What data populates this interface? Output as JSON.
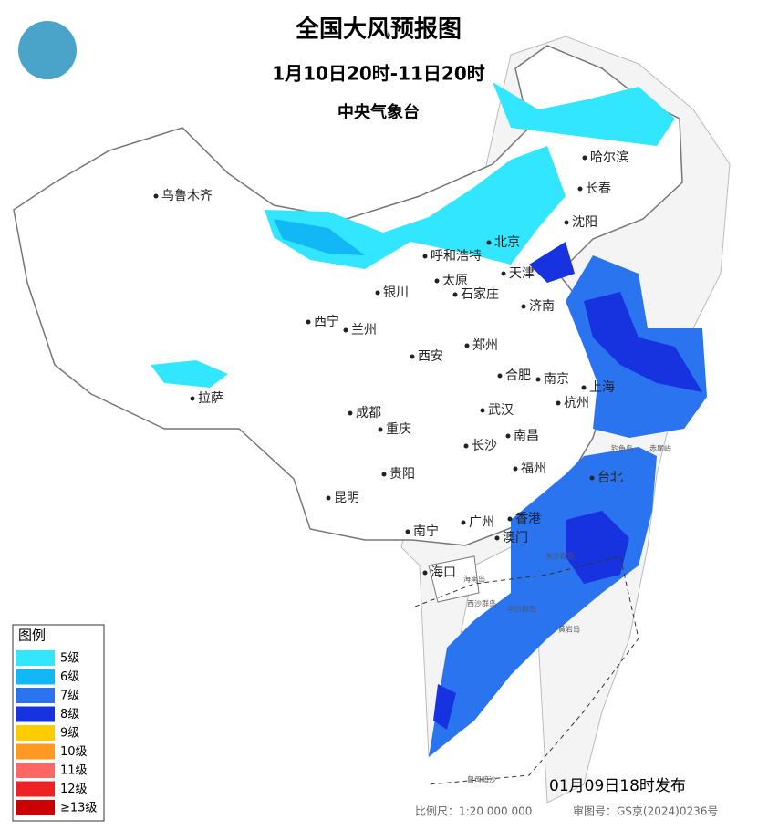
{
  "header": {
    "title": "全国大风预报图",
    "subtitle": "1月10日20时-11日20时",
    "issuer": "中央气象台"
  },
  "cities": [
    "乌鲁木齐",
    "哈尔滨",
    "长春",
    "沈阳",
    "北京",
    "呼和浩特",
    "天津",
    "银川",
    "太原",
    "石家庄",
    "西宁",
    "兰州",
    "济南",
    "西安",
    "郑州",
    "合肥",
    "南京",
    "上海",
    "拉萨",
    "成都",
    "武汉",
    "杭州",
    "重庆",
    "南昌",
    "长沙",
    "福州",
    "台北",
    "贵阳",
    "昆明",
    "南宁",
    "广州",
    "香港",
    "澳门",
    "海口"
  ],
  "islands": [
    "钓鱼岛",
    "赤尾屿",
    "东沙群岛",
    "海南岛",
    "西沙群岛",
    "中沙群岛",
    "黄岩岛",
    "曾母暗沙"
  ],
  "legend": {
    "title": "图例",
    "items": [
      {
        "label": "5级",
        "color": "#33e6ff"
      },
      {
        "label": "6级",
        "color": "#12b8f5"
      },
      {
        "label": "7级",
        "color": "#2a74f0"
      },
      {
        "label": "8级",
        "color": "#1733e0"
      },
      {
        "label": "9级",
        "color": "#ffcc00"
      },
      {
        "label": "10级",
        "color": "#ff9922"
      },
      {
        "label": "11级",
        "color": "#ff6666"
      },
      {
        "label": "12级",
        "color": "#ee2222"
      },
      {
        "label": "≥13级",
        "color": "#cc0000"
      }
    ]
  },
  "footer": {
    "issued": "01月09日18时发布",
    "scale": "比例尺：1:20 000 000",
    "review": "审图号：GS京(2024)0236号"
  }
}
